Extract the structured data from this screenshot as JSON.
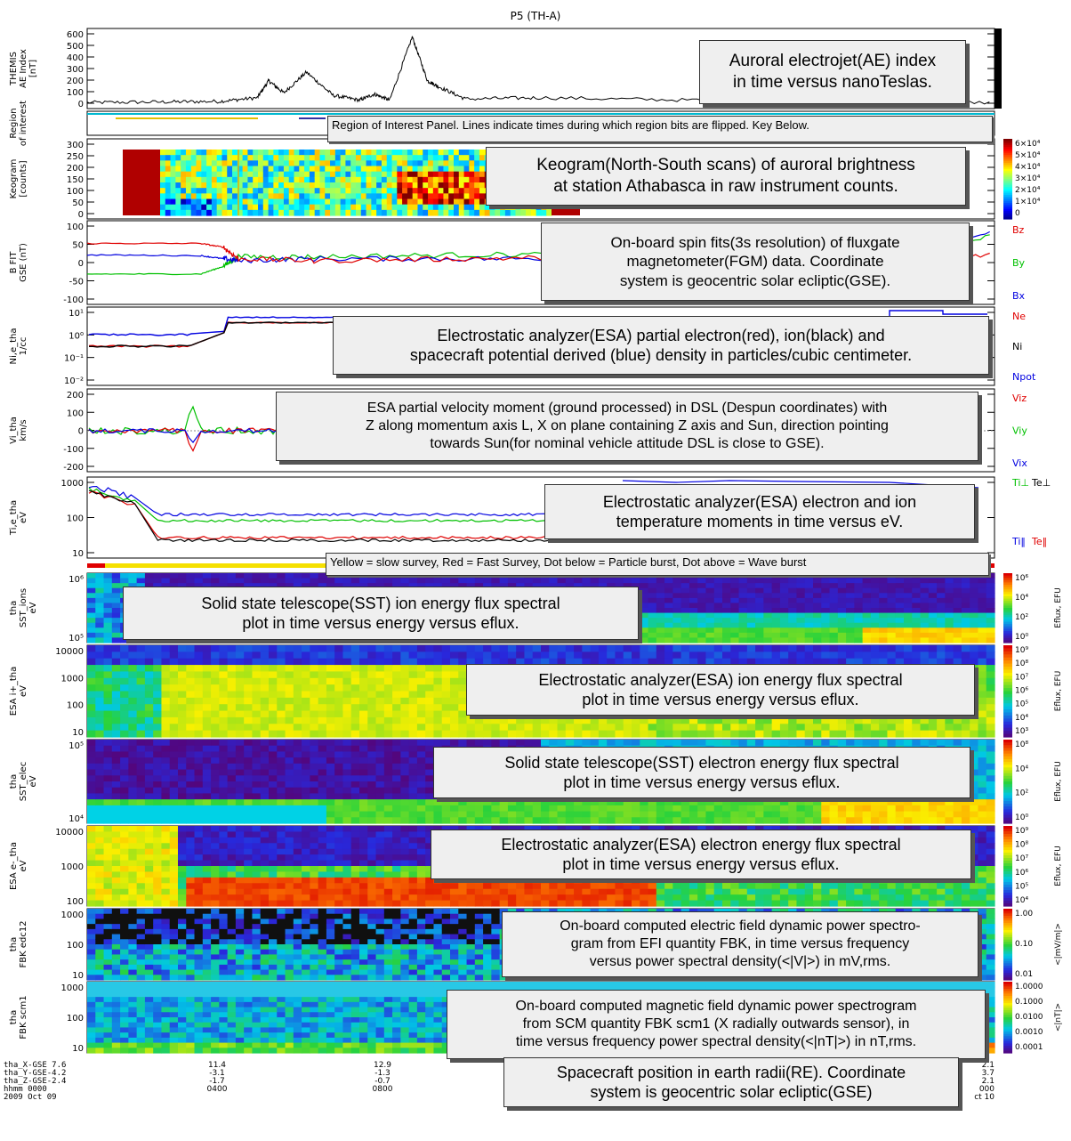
{
  "title": "P5 (TH-A)",
  "panels": [
    {
      "id": "ae",
      "ylabel": "THEMIS\nAE Index\n[nT]",
      "ticks": [
        "600",
        "500",
        "400",
        "300",
        "200",
        "100",
        "0"
      ],
      "annotation": "Auroral electrojet(AE) index\nin time versus nanoTeslas."
    },
    {
      "id": "roi",
      "ylabel": "Region\nof interest",
      "annotation": "Region of Interest Panel. Lines indicate times during which region bits are flipped. Key Below."
    },
    {
      "id": "keogram",
      "ylabel": "Keogram\n[counts]",
      "ticks": [
        "300",
        "250",
        "200",
        "150",
        "100",
        "50",
        "0"
      ],
      "colorbar": [
        "6×10⁴",
        "5×10⁴",
        "4×10⁴",
        "3×10⁴",
        "2×10⁴",
        "1×10⁴",
        "0"
      ],
      "annotation": "Keogram(North-South scans) of auroral brightness\nat station Athabasca in raw instrument counts."
    },
    {
      "id": "bfit",
      "ylabel": "B FIT\nGSE (nT)",
      "ticks": [
        "100",
        "50",
        "0",
        "-50",
        "-100"
      ],
      "legend": [
        {
          "label": "Bz",
          "color": "#e00000"
        },
        {
          "label": "By",
          "color": "#00c000"
        },
        {
          "label": "Bx",
          "color": "#0000e0"
        }
      ],
      "annotation": "On-board spin fits(3s resolution) of fluxgate\nmagnetometer(FGM) data.  Coordinate\nsystem is geocentric solar ecliptic(GSE)."
    },
    {
      "id": "density",
      "ylabel": "Ni,e_tha\n1/cc",
      "ticks": [
        "10¹",
        "10⁰",
        "10⁻¹",
        "10⁻²"
      ],
      "legend": [
        {
          "label": "Ne",
          "color": "#e00000"
        },
        {
          "label": "Ni",
          "color": "#000000"
        },
        {
          "label": "Npot",
          "color": "#0000e0"
        }
      ],
      "annotation": "Electrostatic analyzer(ESA) partial electron(red), ion(black) and\nspacecraft potential derived (blue) density in particles/cubic centimeter."
    },
    {
      "id": "velocity",
      "ylabel": "Vi_tha\nkm/s",
      "ticks": [
        "200",
        "100",
        "0",
        "-100",
        "-200"
      ],
      "legend": [
        {
          "label": "Viz",
          "color": "#e00000"
        },
        {
          "label": "Viy",
          "color": "#00c000"
        },
        {
          "label": "Vix",
          "color": "#0000e0"
        }
      ],
      "annotation": "ESA partial velocity moment (ground processed) in DSL (Despun coordinates) with\nZ along momentum  axis L, X on plane containing Z axis and Sun, direction pointing\n towards Sun(for nominal vehicle attitude DSL is close to GSE)."
    },
    {
      "id": "temperature",
      "ylabel": "Ti,e_tha\neV",
      "ticks": [
        "1000",
        "100",
        "10"
      ],
      "legend": [
        {
          "label": "Ti⊥",
          "color": "#00c000"
        },
        {
          "label": "Te⊥",
          "color": "#000000"
        },
        {
          "label": "Ti‖",
          "color": "#0000e0"
        },
        {
          "label": "Te‖",
          "color": "#e00000"
        }
      ],
      "annotation": "Electrostatic analyzer(ESA) electron and ion\ntemperature moments in time versus eV."
    },
    {
      "id": "mode",
      "ylabel": "",
      "annotation": "Yellow = slow survey, Red = Fast Survey, Dot below = Particle burst, Dot above = Wave burst"
    },
    {
      "id": "sst_ion",
      "ylabel": "tha\nSST_ions\neV",
      "ticks": [
        "10⁶",
        "10⁵"
      ],
      "colorbar": [
        "10⁶",
        "10⁴",
        "10²",
        "10⁰"
      ],
      "cblabel": "Eflux, EFU",
      "annotation": "Solid state telescope(SST) ion energy flux spectral\nplot in time versus energy versus eflux."
    },
    {
      "id": "esa_ion",
      "ylabel": "ESA i+_tha\neV",
      "ticks": [
        "10000",
        "1000",
        "100",
        "10"
      ],
      "colorbar": [
        "10⁹",
        "10⁸",
        "10⁷",
        "10⁶",
        "10⁵",
        "10⁴",
        "10³"
      ],
      "cblabel": "Eflux, EFU",
      "annotation": "Electrostatic analyzer(ESA) ion energy flux spectral\nplot in time versus energy versus eflux."
    },
    {
      "id": "sst_elec",
      "ylabel": "tha\nSST_elec\neV",
      "ticks": [
        "10⁵",
        "10⁴"
      ],
      "colorbar": [
        "10⁸",
        "10⁴",
        "10²",
        "10⁰"
      ],
      "cblabel": "Eflux, EFU",
      "annotation": "Solid state telescope(SST) electron energy flux spectral\nplot in time versus energy versus eflux."
    },
    {
      "id": "esa_elec",
      "ylabel": "ESA e-_tha\neV",
      "ticks": [
        "10000",
        "1000",
        "100"
      ],
      "colorbar": [
        "10⁹",
        "10⁸",
        "10⁷",
        "10⁶",
        "10⁵",
        "10⁴"
      ],
      "cblabel": "Eflux, EFU",
      "annotation": "Electrostatic analyzer(ESA) electron energy flux spectral\nplot in time versus energy versus eflux."
    },
    {
      "id": "fbk_efi",
      "ylabel": "tha\nFBK edc12",
      "ticks": [
        "1000",
        "100",
        "10"
      ],
      "colorbar": [
        "1.00",
        "0.10",
        "0.01"
      ],
      "cblabel": "<|mV/m|>",
      "annotation": "On-board computed electric field dynamic power spectro-\ngram from EFI quantity FBK, in time versus frequency\nversus power spectral density(<|V|>) in mV,rms."
    },
    {
      "id": "fbk_scm",
      "ylabel": "tha\nFBK scm1",
      "ticks": [
        "1000",
        "100",
        "10"
      ],
      "colorbar": [
        "1.0000",
        "0.1000",
        "0.0100",
        "0.0010",
        "0.0001"
      ],
      "cblabel": "<|nT|>",
      "annotation": "On-board computed magnetic field dynamic power spectrogram\nfrom SCM quantity FBK scm1 (X radially outwards sensor), in\ntime versus frequency power spectral density(<|nT|>) in nT,rms."
    }
  ],
  "footer": {
    "row_labels": [
      "tha_X-GSE 7.6",
      "tha_Y-GSE-4.2",
      "tha_Z-GSE-2.4",
      "hhmm     0000",
      "2009     Oct 09"
    ],
    "col1": [
      "11.4",
      "-3.1",
      "-1.7",
      "0400"
    ],
    "col2": [
      "12.9",
      "-1.3",
      "-0.7",
      "0800"
    ],
    "right": [
      "2.1",
      "3.7",
      "2.1",
      "000",
      "ct 10"
    ],
    "annotation": "Spacecraft position in earth radii(RE). Coordinate\nsystem is geocentric solar ecliptic(GSE)"
  },
  "chart_data": {
    "type": "line",
    "title": "P5 (TH-A)",
    "x_time_ticks": [
      "0000",
      "0400",
      "0800"
    ],
    "ae_index_approx": {
      "x_hours": [
        0,
        2,
        3.5,
        4.5,
        4.8,
        5.2,
        5.8,
        6.5,
        7.2,
        7.6,
        8.0,
        8.6,
        9.0,
        9.3,
        10,
        12,
        16,
        20,
        24
      ],
      "y_nT": [
        20,
        25,
        30,
        60,
        200,
        100,
        270,
        80,
        40,
        90,
        40,
        560,
        200,
        150,
        50,
        60,
        40,
        30,
        20
      ],
      "ylim": [
        0,
        600
      ]
    },
    "bfit_approx": {
      "x_hours": [
        0,
        3,
        3.6,
        4.0,
        6,
        10,
        14,
        18,
        21,
        24
      ],
      "Bz": [
        50,
        50,
        40,
        10,
        5,
        10,
        15,
        15,
        15,
        20
      ],
      "By": [
        -30,
        -30,
        -10,
        15,
        15,
        20,
        22,
        25,
        25,
        70
      ],
      "Bx": [
        20,
        18,
        10,
        5,
        10,
        10,
        10,
        10,
        10,
        80
      ],
      "ylim": [
        -100,
        100
      ]
    }
  }
}
